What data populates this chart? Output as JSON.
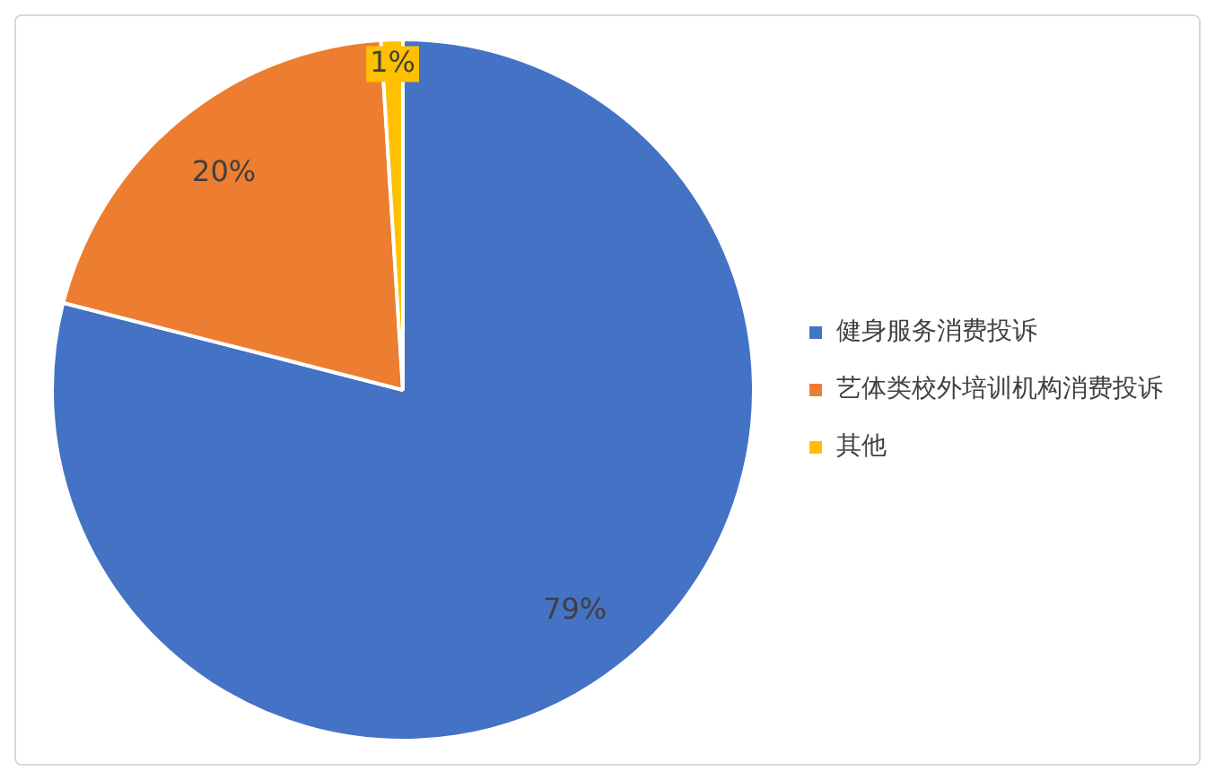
{
  "chart_data": {
    "type": "pie",
    "categories": [
      "健身服务消费投诉",
      "艺体类校外培训机构消费投诉",
      "其他"
    ],
    "values": [
      79,
      20,
      1
    ],
    "colors": [
      "#4472c4",
      "#ed7d31",
      "#ffc000"
    ],
    "value_labels": [
      "79%",
      "20%",
      "1%"
    ],
    "legend": "right"
  }
}
